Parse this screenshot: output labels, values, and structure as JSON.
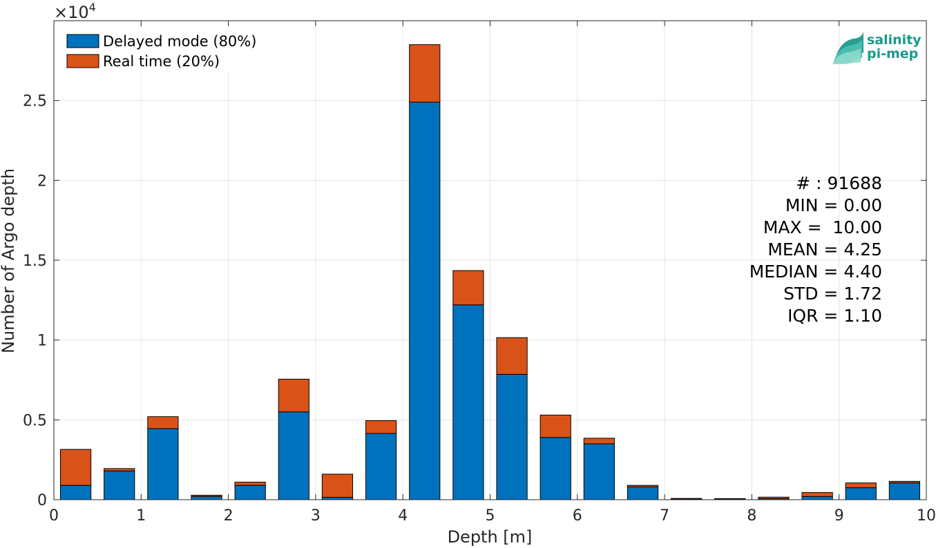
{
  "colors": {
    "delayed": "#0072bd",
    "realtime": "#d95319",
    "grid": "#e6e6e6",
    "axis": "#262626",
    "logo": "#1a9a8c"
  },
  "legend": {
    "location": "top-left",
    "items": [
      "Delayed mode (80%)",
      "Real time (20%)"
    ]
  },
  "logo": {
    "line1": "salinity",
    "line2": "pi-mep"
  },
  "stats": [
    "# : 91688",
    "MIN = 0.00",
    "MAX =  10.00",
    "MEAN = 4.25",
    "MEDIAN = 4.40",
    "STD = 1.72",
    "IQR = 1.10"
  ],
  "chart_data": {
    "type": "bar",
    "stacked": true,
    "xlabel": "Depth [m]",
    "ylabel": "Number of Argo depth",
    "y_exponent_label": "×10",
    "y_exponent": "4",
    "xlim": [
      0,
      10
    ],
    "ylim": [
      0,
      30000
    ],
    "grid": true,
    "bin_width": 0.5,
    "xticks": [
      0,
      1,
      2,
      3,
      4,
      5,
      6,
      7,
      8,
      9,
      10
    ],
    "xtick_labels": [
      "0",
      "1",
      "2",
      "3",
      "4",
      "5",
      "6",
      "7",
      "8",
      "9",
      "10"
    ],
    "yticks": [
      0,
      5000,
      10000,
      15000,
      20000,
      25000
    ],
    "ytick_labels": [
      "0",
      "0.5",
      "1",
      "1.5",
      "2",
      "2.5"
    ],
    "x": [
      0.25,
      0.75,
      1.25,
      1.75,
      2.25,
      2.75,
      3.25,
      3.75,
      4.25,
      4.75,
      5.25,
      5.75,
      6.25,
      6.75,
      7.25,
      7.75,
      8.25,
      8.75,
      9.25,
      9.75
    ],
    "series": [
      {
        "name": "Delayed mode (80%)",
        "values": [
          900,
          1800,
          4450,
          200,
          900,
          5500,
          150,
          4150,
          24900,
          12200,
          7850,
          3900,
          3500,
          800,
          30,
          20,
          60,
          200,
          750,
          1050
        ]
      },
      {
        "name": "Real time (20%)",
        "values": [
          2250,
          150,
          750,
          80,
          200,
          2050,
          1450,
          800,
          3600,
          2150,
          2300,
          1400,
          350,
          100,
          50,
          50,
          100,
          250,
          300,
          100
        ]
      }
    ]
  }
}
